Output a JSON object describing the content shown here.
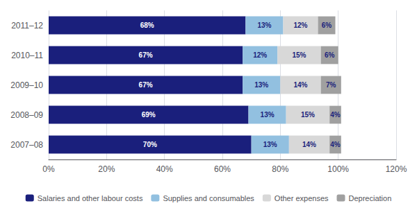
{
  "chart_data": {
    "type": "bar",
    "orientation": "horizontal",
    "stacked": true,
    "data_labels": true,
    "grid": true,
    "legend": "bottom",
    "categories": [
      "2007–08",
      "2008–09",
      "2009–10",
      "2010–11",
      "2011–12"
    ],
    "series": [
      {
        "name": "Salaries and other labour costs",
        "color": "#1a1f7c",
        "values": [
          70,
          69,
          67,
          67,
          68
        ],
        "value_labels": [
          "70%",
          "69%",
          "67%",
          "67%",
          "68%"
        ]
      },
      {
        "name": "Supplies and consumables",
        "color": "#92c0e0",
        "values": [
          13,
          13,
          13,
          12,
          13
        ],
        "value_labels": [
          "13%",
          "13%",
          "13%",
          "12%",
          "13%"
        ]
      },
      {
        "name": "Other expenses",
        "color": "#d8d8d8",
        "values": [
          14,
          15,
          14,
          15,
          12
        ],
        "value_labels": [
          "14%",
          "15%",
          "14%",
          "15%",
          "12%"
        ]
      },
      {
        "name": "Depreciation",
        "color": "#a0a0a0",
        "values": [
          4,
          4,
          7,
          6,
          6
        ],
        "value_labels": [
          "4%",
          "4%",
          "7%",
          "6%",
          "6%"
        ]
      }
    ],
    "xlim": [
      0,
      120
    ],
    "xticks": [
      {
        "value": 0,
        "label": "0%"
      },
      {
        "value": 20,
        "label": "20%"
      },
      {
        "value": 40,
        "label": "40%"
      },
      {
        "value": 60,
        "label": "60%"
      },
      {
        "value": 80,
        "label": "80%"
      },
      {
        "value": 100,
        "label": "100%"
      },
      {
        "value": 120,
        "label": "120%"
      }
    ]
  }
}
